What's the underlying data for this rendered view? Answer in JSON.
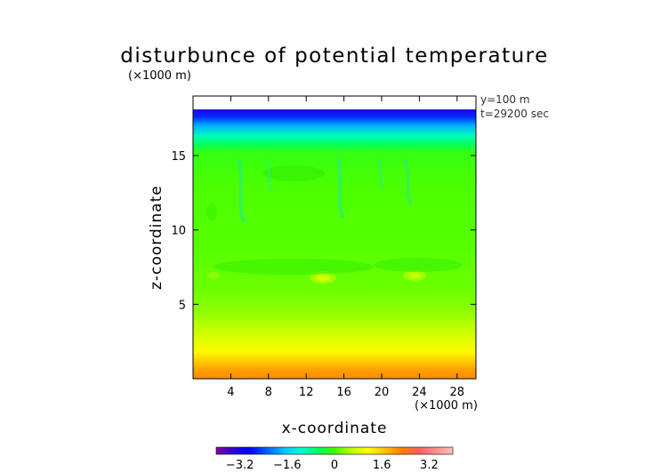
{
  "chart_data": {
    "type": "heatmap",
    "title": "disturbunce of potential temperature",
    "y_unit_label": "(×1000 m)",
    "x_unit_label": "(×1000 m)",
    "xlabel": "x-coordinate",
    "ylabel": "z-coordinate",
    "annotations": [
      "y=100 m",
      "t=29200 sec"
    ],
    "xlim": [
      0,
      30
    ],
    "ylim": [
      0,
      19
    ],
    "x_ticks": [
      4,
      8,
      12,
      16,
      20,
      24,
      28
    ],
    "x_tick_labels": [
      "4",
      "8",
      "12",
      "16",
      "20",
      "24",
      "28"
    ],
    "y_ticks": [
      5,
      10,
      15
    ],
    "y_tick_labels": [
      "5",
      "10",
      "15"
    ],
    "data_top_z": 18.1,
    "vertical_profile": [
      {
        "z": 0.0,
        "value": 2.2
      },
      {
        "z": 0.6,
        "value": 2.0
      },
      {
        "z": 1.2,
        "value": 1.6
      },
      {
        "z": 1.8,
        "value": 1.2
      },
      {
        "z": 2.5,
        "value": 0.9
      },
      {
        "z": 3.5,
        "value": 0.55
      },
      {
        "z": 4.5,
        "value": 0.35
      },
      {
        "z": 6.0,
        "value": 0.2
      },
      {
        "z": 9.0,
        "value": 0.1
      },
      {
        "z": 13.0,
        "value": 0.05
      },
      {
        "z": 15.2,
        "value": -0.1
      },
      {
        "z": 15.7,
        "value": -0.5
      },
      {
        "z": 16.3,
        "value": -1.0
      },
      {
        "z": 17.0,
        "value": -1.8
      },
      {
        "z": 17.6,
        "value": -2.6
      },
      {
        "z": 18.1,
        "value": -3.2
      }
    ],
    "colorbar": {
      "range": [
        -4.0,
        4.0
      ],
      "ticks": [
        -3.2,
        -1.6,
        0,
        1.6,
        3.2
      ],
      "tick_labels": [
        "−3.2",
        "−1.6",
        "0",
        "1.6",
        "3.2"
      ],
      "colors": [
        "#8000a0",
        "#3000d0",
        "#0000ff",
        "#0060ff",
        "#00c0ff",
        "#00ffd0",
        "#00ff60",
        "#40ff00",
        "#c0ff00",
        "#ffff00",
        "#ffc000",
        "#ff8000",
        "#ff6060",
        "#ff9090",
        "#ffc0c0"
      ]
    }
  }
}
